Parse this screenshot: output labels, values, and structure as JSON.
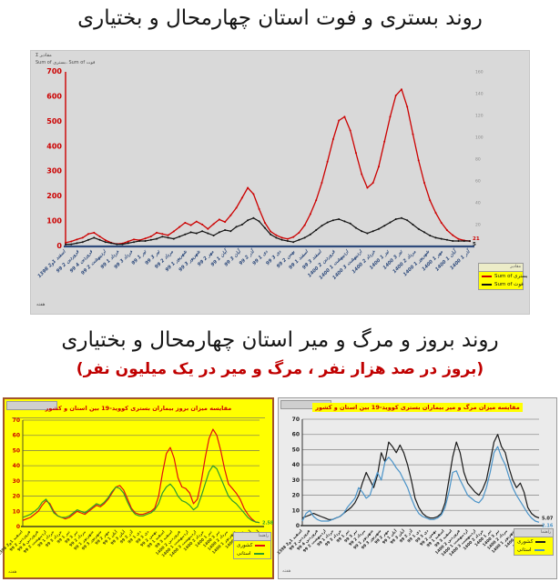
{
  "section1": {
    "title": "روند بستری و فوت استان چهارمحال و بختیاری"
  },
  "section2": {
    "title": "روند بروز و مرگ و میر استان چهارمحال و بختیاری",
    "subtitle": "(بروز در صد هزار نفر ، مرگ و میر در یک میلیون نفر)",
    "subtitle_color": "#c00000"
  },
  "top_chart": {
    "fields": {
      "values_button": "Σ مقادیر",
      "series_button": "Sum of بستری، Sum of فوت",
      "axis_button": "هفته"
    },
    "legend": {
      "header": "مقادیر",
      "bg": "#ffff00"
    }
  },
  "left_panel": {
    "legend_header": "راهنما",
    "axis_field": "هفته"
  },
  "right_panel": {
    "legend_header": "راهنما",
    "axis_field": "هفته"
  },
  "chart_data": [
    {
      "type": "line",
      "title": "روند بستری و فوت استان چهارمحال و بختیاری",
      "ylabel": "بستری",
      "y2label": "فوت",
      "ylim": [
        0,
        700
      ],
      "ystep": 100,
      "ytick_color": "#cc0000",
      "ylim2": [
        0,
        160
      ],
      "y2step": 20,
      "y2tick_color": "#8c8c8c",
      "grid": false,
      "axis_left_color": "#cc0000",
      "axis_bottom_color": "#2f4b7c",
      "xlabel_color": "#2f4b7c",
      "legend_position": "right",
      "xlabels": [
        "1398 اسفند 1و2",
        "99 فروردین 2",
        "99 فروردین 4",
        "99 اردیبهشت 2",
        "99 خرداد 1",
        "99 خرداد 3",
        "99 تیر 1",
        "99 تیر 3",
        "99 مرداد 2",
        "99 شهریور 1",
        "99 شهریور 3",
        "99 مهر 2",
        "99 آبان 1",
        "99 آبان 3",
        "99 آذر 2",
        "99 دی 1",
        "99 دی 3",
        "99 بهمن 2",
        "99 اسفند 1",
        "99 اسفند 3",
        "1400 فروردین 2",
        "1400 اردیبهشت 1",
        "1400 اردیبهشت 3",
        "1400 خرداد 2",
        "1400 تیر 1",
        "1400 تیر 3",
        "1400 مرداد 2",
        "1400 شهریور 1",
        "1400 مهر 1",
        "1400 آبان 1",
        "1400 آذر 1"
      ],
      "series": [
        {
          "name": "Sum of بستری",
          "color": "#cc0000",
          "axis": "y",
          "marker": true,
          "width": 1.3,
          "end_label": "21",
          "end_dy": -1,
          "values": [
            15,
            20,
            28,
            35,
            50,
            55,
            40,
            25,
            15,
            10,
            12,
            20,
            28,
            25,
            32,
            40,
            55,
            50,
            45,
            60,
            78,
            95,
            85,
            100,
            88,
            70,
            90,
            108,
            98,
            125,
            155,
            195,
            235,
            210,
            150,
            95,
            60,
            45,
            35,
            30,
            38,
            55,
            85,
            130,
            185,
            255,
            340,
            430,
            505,
            520,
            465,
            375,
            290,
            235,
            255,
            320,
            420,
            520,
            605,
            630,
            560,
            450,
            345,
            255,
            185,
            135,
            95,
            65,
            45,
            30,
            24,
            21
          ]
        },
        {
          "name": "Sum of فوت",
          "color": "#111111",
          "axis": "y2",
          "marker": true,
          "width": 1.2,
          "end_label": "5",
          "end_dy": 5,
          "values": [
            2,
            2,
            3,
            4,
            6,
            8,
            6,
            4,
            3,
            2,
            2,
            3,
            4,
            5,
            5,
            6,
            7,
            9,
            8,
            7,
            9,
            11,
            13,
            12,
            14,
            12,
            10,
            13,
            15,
            14,
            18,
            20,
            24,
            26,
            23,
            17,
            11,
            8,
            6,
            5,
            4,
            6,
            8,
            11,
            15,
            19,
            22,
            24,
            25,
            23,
            21,
            17,
            14,
            12,
            14,
            16,
            19,
            22,
            25,
            26,
            24,
            20,
            16,
            13,
            10,
            8,
            7,
            6,
            5,
            5,
            5,
            5
          ]
        }
      ]
    },
    {
      "type": "line",
      "title": "مقایسه میزان بروز بیماران بستری کووید-19 بین استان و کشور",
      "ylim": [
        0,
        70
      ],
      "ystep": 10,
      "ytick_color": "#cc0000",
      "grid": true,
      "grid_color": "#8a8a4a",
      "axis_left_color": "#555522",
      "axis_bottom_color": "#444422",
      "xlabel_color": "#4a4a10",
      "legend_position": "bottom-right",
      "xlabels": [
        "1398 اسفند 1و2",
        "99 فروردین 2",
        "99 فروردین 4",
        "99 اردیبهشت 2",
        "99 خرداد 1",
        "99 خرداد 3",
        "99 تیر 1",
        "99 تیر 3",
        "99 مرداد 2",
        "99 شهریور 1",
        "99 شهریور 3",
        "99 مهر 2",
        "99 آبان 1",
        "99 آبان 3",
        "99 آذر 2",
        "99 دی 1",
        "99 دی 3",
        "99 بهمن 2",
        "99 اسفند 1",
        "99 اسفند 3",
        "1400 فروردین 2",
        "1400 اردیبهشت 1",
        "1400 اردیبهشت 3",
        "1400 خرداد 2",
        "1400 تیر 1",
        "1400 تیر 3",
        "1400 مرداد 2",
        "1400 شهریور 1",
        "1400 مهر 1",
        "1400 آبان 1",
        "1400 آذر 1"
      ],
      "series": [
        {
          "name": "کشوری",
          "color": "#e01010",
          "axis": "y",
          "width": 1.2,
          "values": [
            4,
            5,
            6,
            8,
            10,
            14,
            17,
            15,
            10,
            7,
            6,
            5,
            6,
            8,
            10,
            9,
            8,
            10,
            12,
            14,
            13,
            15,
            18,
            22,
            26,
            27,
            24,
            18,
            12,
            9,
            8,
            8,
            9,
            10,
            12,
            20,
            35,
            48,
            52,
            45,
            32,
            26,
            25,
            22,
            15,
            18,
            30,
            45,
            58,
            64,
            60,
            50,
            38,
            28,
            25,
            22,
            18,
            12,
            8,
            5,
            3,
            2.6
          ]
        },
        {
          "name": "استانی",
          "color": "#2e9b2e",
          "axis": "y",
          "width": 1.2,
          "end_label": "2.58",
          "end_dy": 2,
          "values": [
            6,
            7,
            8,
            10,
            12,
            16,
            18,
            14,
            9,
            7,
            6,
            6,
            7,
            9,
            11,
            10,
            9,
            11,
            13,
            15,
            14,
            16,
            19,
            23,
            26,
            25,
            22,
            16,
            11,
            8,
            7,
            7,
            8,
            9,
            11,
            15,
            22,
            26,
            28,
            25,
            20,
            17,
            16,
            14,
            11,
            13,
            20,
            28,
            36,
            40,
            38,
            32,
            26,
            20,
            17,
            15,
            12,
            9,
            6,
            4,
            3,
            2.6
          ]
        }
      ]
    },
    {
      "type": "line",
      "title": "مقایسه میزان مرگ و میر بیماران بستری کووید-19 بین استان و کشور",
      "ylim": [
        0,
        70
      ],
      "ystep": 10,
      "ytick_color": "#222222",
      "grid": true,
      "grid_color": "#909090",
      "axis_left_color": "#333333",
      "axis_bottom_color": "#333333",
      "xlabel_color": "#222222",
      "legend_position": "bottom-right",
      "xlabels": [
        "1398 اسفند 1و2",
        "99 فروردین 2",
        "99 فروردین 4",
        "99 اردیبهشت 2",
        "99 خرداد 1",
        "99 خرداد 3",
        "99 تیر 1",
        "99 تیر 3",
        "99 مرداد 2",
        "99 شهریور 1",
        "99 شهریور 3",
        "99 مهر 2",
        "99 آبان 1",
        "99 آبان 3",
        "99 آذر 2",
        "99 دی 1",
        "99 دی 3",
        "99 بهمن 2",
        "99 اسفند 1",
        "99 اسفند 3",
        "1400 فروردین 2",
        "1400 اردیبهشت 1",
        "1400 اردیبهشت 3",
        "1400 خرداد 2",
        "1400 تیر 1",
        "1400 تیر 3",
        "1400 مرداد 2",
        "1400 شهریور 1",
        "1400 مهر 1",
        "1400 آبان 1",
        "1400 آذر 1"
      ],
      "series": [
        {
          "name": "کشوری",
          "color": "#1a1a1a",
          "axis": "y",
          "width": 1.2,
          "end_label": "5.07",
          "end_dy": 0,
          "values": [
            5,
            6,
            7,
            8,
            7,
            6,
            5,
            4,
            4,
            5,
            6,
            8,
            10,
            12,
            15,
            20,
            28,
            35,
            30,
            25,
            33,
            48,
            42,
            55,
            52,
            48,
            53,
            48,
            40,
            30,
            18,
            12,
            8,
            6,
            5,
            5,
            6,
            8,
            15,
            30,
            45,
            55,
            48,
            35,
            28,
            25,
            22,
            20,
            24,
            30,
            42,
            55,
            60,
            52,
            48,
            38,
            30,
            25,
            28,
            22,
            12,
            8,
            6,
            5.1
          ]
        },
        {
          "name": "استانی",
          "color": "#4a93c8",
          "axis": "y",
          "width": 1.2,
          "end_label": "2.16",
          "end_dy": 5,
          "values": [
            3,
            8,
            10,
            6,
            4,
            3,
            3,
            3,
            4,
            5,
            6,
            8,
            12,
            15,
            18,
            25,
            22,
            18,
            20,
            28,
            35,
            30,
            42,
            45,
            42,
            38,
            35,
            30,
            25,
            18,
            12,
            8,
            6,
            5,
            4,
            4,
            5,
            7,
            12,
            22,
            35,
            36,
            30,
            25,
            20,
            18,
            16,
            15,
            18,
            25,
            35,
            48,
            52,
            45,
            40,
            32,
            25,
            20,
            16,
            12,
            8,
            5,
            3,
            2.2
          ]
        }
      ]
    }
  ]
}
